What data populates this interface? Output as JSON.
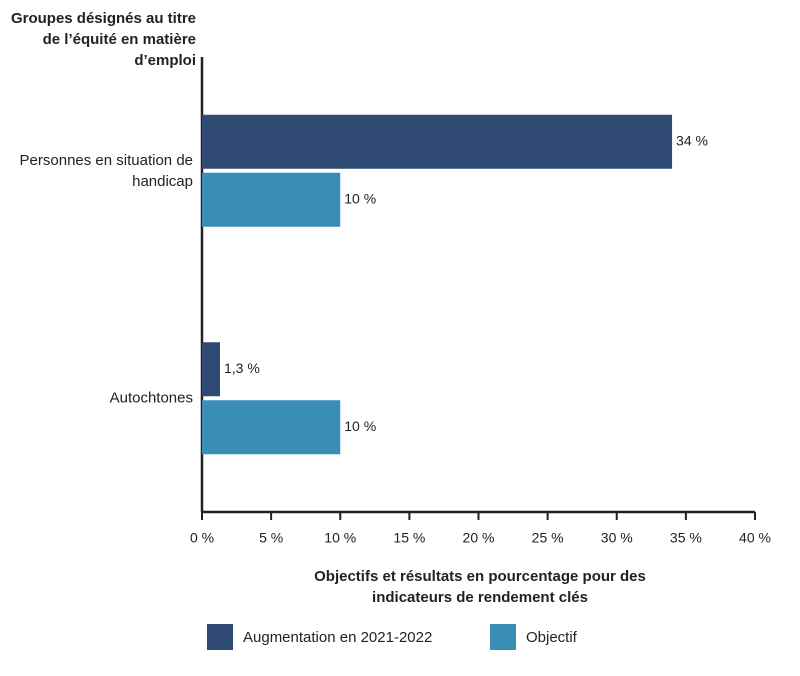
{
  "chart_data": {
    "type": "hbar",
    "y_label": "Groupes désignés au titre de l’équité en matière d’emploi",
    "x_label": "Objectifs et résultats en pourcentage pour des indicateurs de rendement clés",
    "categories": [
      "Personnes en situation de handicap",
      "Autochtones"
    ],
    "series": [
      {
        "name": "Augmentation en 2021-2022",
        "color": "#2f4b73",
        "values": [
          34,
          1.3
        ],
        "value_labels": [
          "34 %",
          "1,3 %"
        ]
      },
      {
        "name": "Objectif",
        "color": "#3a8db5",
        "values": [
          10,
          10
        ],
        "value_labels": [
          "10 %",
          "10 %"
        ]
      }
    ],
    "xlim": [
      0,
      40
    ],
    "xticks": [
      {
        "value": 0,
        "label": "0 %"
      },
      {
        "value": 5,
        "label": "5 %"
      },
      {
        "value": 10,
        "label": "10 %"
      },
      {
        "value": 15,
        "label": "15 %"
      },
      {
        "value": 20,
        "label": "20 %"
      },
      {
        "value": 25,
        "label": "25 %"
      },
      {
        "value": 30,
        "label": "30 %"
      },
      {
        "value": 35,
        "label": "35 %"
      },
      {
        "value": 40,
        "label": "40 %"
      }
    ],
    "grid": false
  }
}
